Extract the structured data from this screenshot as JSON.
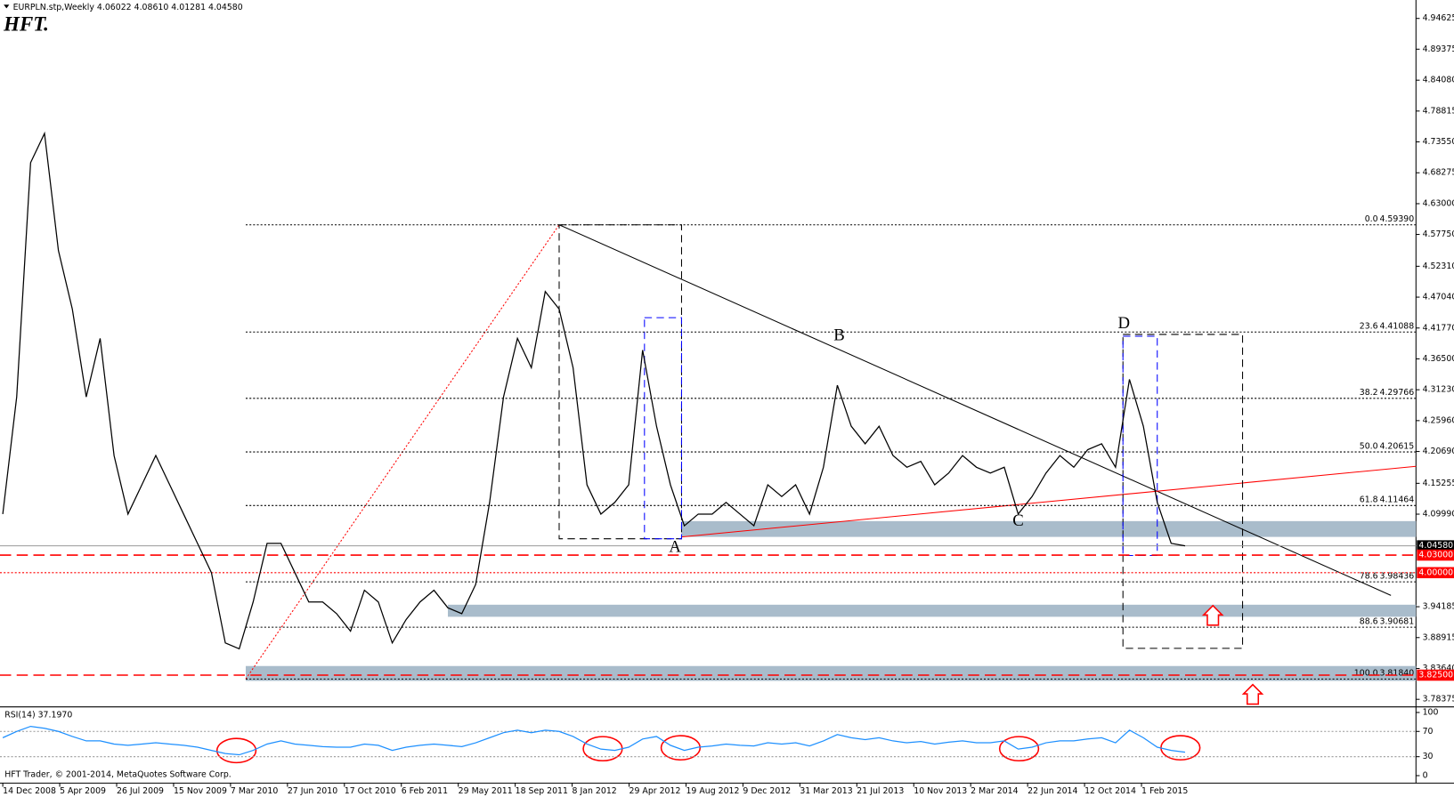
{
  "chart_data": [
    {
      "type": "line",
      "title": "EURPLN.stp,Weekly  4.06022 4.08610 4.01281 4.04580",
      "logo": "HFT.",
      "color": "#000000",
      "values": [
        4.1,
        4.3,
        4.7,
        4.75,
        4.55,
        4.45,
        4.3,
        4.4,
        4.2,
        4.1,
        4.15,
        4.2,
        4.15,
        4.1,
        4.05,
        4.0,
        3.88,
        3.87,
        3.95,
        4.05,
        4.05,
        4.0,
        3.95,
        3.95,
        3.93,
        3.9,
        3.97,
        3.95,
        3.88,
        3.92,
        3.95,
        3.97,
        3.94,
        3.93,
        3.98,
        4.12,
        4.3,
        4.4,
        4.35,
        4.48,
        4.45,
        4.35,
        4.15,
        4.1,
        4.12,
        4.15,
        4.38,
        4.25,
        4.15,
        4.08,
        4.1,
        4.1,
        4.12,
        4.1,
        4.08,
        4.15,
        4.13,
        4.15,
        4.1,
        4.18,
        4.32,
        4.25,
        4.22,
        4.25,
        4.2,
        4.18,
        4.19,
        4.15,
        4.17,
        4.2,
        4.18,
        4.17,
        4.18,
        4.1,
        4.13,
        4.17,
        4.2,
        4.18,
        4.21,
        4.22,
        4.18,
        4.33,
        4.25,
        4.12,
        4.05,
        4.0458
      ],
      "ylim": [
        3.7724,
        4.9698
      ],
      "yticks": [
        4.94625,
        4.89375,
        {
          "value": 4.8408,
          "label": "4.84080"
        },
        4.78815,
        {
          "value": 4.7355,
          "label": "4.73550"
        },
        4.68275,
        {
          "value": 4.63,
          "label": "4.63000"
        },
        {
          "value": 4.5775,
          "label": "4.57750"
        },
        {
          "value": 4.5231,
          "label": "4.52310"
        },
        {
          "value": 4.4704,
          "label": "4.47040"
        },
        {
          "value": 4.4177,
          "label": "4.41770"
        },
        {
          "value": 4.365,
          "label": "4.36500"
        },
        {
          "value": 4.3123,
          "label": "4.31230"
        },
        {
          "value": 4.2596,
          "label": "4.25960"
        },
        {
          "value": 4.2069,
          "label": "4.20690"
        },
        4.15255,
        {
          "value": 4.0999,
          "label": "4.09990"
        },
        3.94185,
        3.88915,
        {
          "value": 3.8364,
          "label": "3.83640"
        },
        3.78375
      ],
      "fib_levels": [
        {
          "level": "0.0",
          "price": {
            "value": 4.5939,
            "label": "4.59390"
          }
        },
        {
          "level": "23.6",
          "price": 4.41088
        },
        {
          "level": "38.2",
          "price": 4.29766
        },
        {
          "level": "50.0",
          "price": 4.20615
        },
        {
          "level": "61.8",
          "price": 4.11464
        },
        {
          "level": "78.6",
          "price": 3.98436
        },
        {
          "level": "88.6",
          "price": 3.90681
        },
        {
          "level": "100.0",
          "price": {
            "value": 3.8184,
            "label": "3.81840"
          }
        }
      ],
      "price_lines": [
        {
          "price": {
            "value": 4.0458,
            "label": "4.04580"
          },
          "color": "#000000"
        },
        {
          "price": {
            "value": 4.03,
            "label": "4.03000"
          },
          "color": "#ff0000"
        },
        {
          "price": {
            "value": 4.0,
            "label": "4.00000"
          },
          "color": "#ff0000"
        },
        {
          "price": {
            "value": 3.825,
            "label": "3.82500"
          },
          "color": "#ff0000"
        }
      ],
      "annotations": [
        "A",
        "B",
        "C",
        "D"
      ],
      "date_labels": [
        "14 Dec 2008",
        "5 Apr 2009",
        "26 Jul 2009",
        "15 Nov 2009",
        "7 Mar 2010",
        "27 Jun 2010",
        "17 Oct 2010",
        "6 Feb 2011",
        "29 May 2011",
        "18 Sep 2011",
        "8 Jan 2012",
        "29 Apr 2012",
        "19 Aug 2012",
        "9 Dec 2012",
        "31 Mar 2013",
        "21 Jul 2013",
        "10 Nov 2013",
        "2 Mar 2014",
        "22 Jun 2014",
        "12 Oct 2014",
        "1 Feb 2015"
      ],
      "footer": "HFT Trader, © 2001-2014, MetaQuotes Software Corp."
    },
    {
      "type": "line",
      "title": "RSI(14) 37.1970",
      "color": "#1e90ff",
      "values": [
        60,
        70,
        78,
        75,
        70,
        62,
        55,
        55,
        50,
        48,
        50,
        52,
        50,
        48,
        45,
        40,
        35,
        33,
        40,
        50,
        55,
        50,
        48,
        46,
        45,
        45,
        50,
        48,
        40,
        45,
        48,
        50,
        48,
        46,
        52,
        60,
        68,
        72,
        68,
        72,
        70,
        62,
        50,
        42,
        40,
        45,
        58,
        62,
        48,
        40,
        45,
        47,
        50,
        48,
        47,
        52,
        50,
        52,
        47,
        55,
        65,
        60,
        57,
        60,
        55,
        52,
        54,
        50,
        53,
        55,
        52,
        52,
        55,
        42,
        45,
        52,
        55,
        55,
        58,
        60,
        52,
        72,
        60,
        45,
        40,
        37.197
      ],
      "ylim": [
        0,
        100
      ],
      "yticks": [
        100,
        70,
        30,
        0
      ]
    }
  ]
}
